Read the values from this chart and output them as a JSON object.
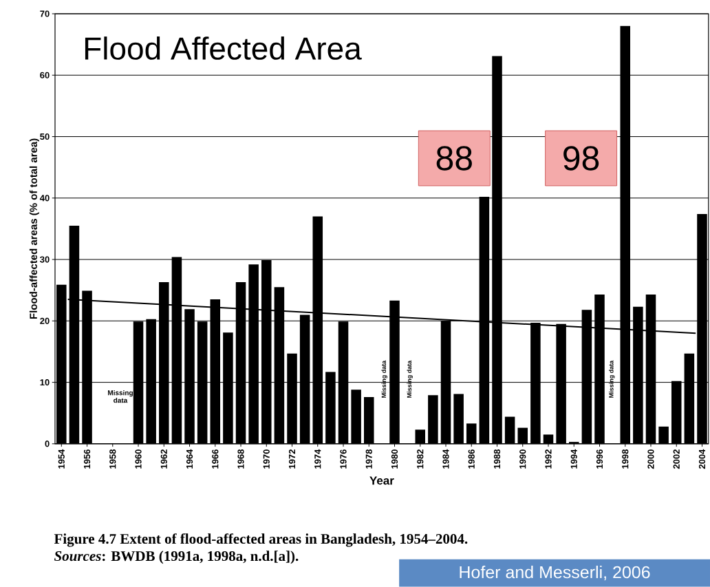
{
  "chart_data": {
    "type": "bar",
    "title": "Flood Affected Area",
    "xlabel": "Year",
    "ylabel": "Flood-affected areas (% of total area)",
    "x": [
      1954,
      1955,
      1956,
      1957,
      1958,
      1959,
      1960,
      1961,
      1962,
      1963,
      1964,
      1965,
      1966,
      1967,
      1968,
      1969,
      1970,
      1971,
      1972,
      1973,
      1974,
      1975,
      1976,
      1977,
      1978,
      1979,
      1980,
      1981,
      1982,
      1983,
      1984,
      1985,
      1986,
      1987,
      1988,
      1989,
      1990,
      1991,
      1992,
      1993,
      1994,
      1995,
      1996,
      1997,
      1998,
      1999,
      2000,
      2001,
      2002,
      2003,
      2004
    ],
    "series": [
      {
        "color": "#000000",
        "values": [
          25.9,
          35.5,
          24.9,
          null,
          null,
          null,
          19.9,
          20.3,
          26.3,
          30.4,
          21.9,
          19.9,
          23.5,
          18.1,
          26.3,
          29.2,
          29.9,
          25.5,
          14.7,
          21.0,
          37.0,
          11.7,
          19.9,
          8.8,
          7.6,
          null,
          23.3,
          null,
          2.3,
          7.9,
          20.0,
          8.1,
          3.3,
          40.2,
          63.1,
          4.4,
          2.6,
          19.7,
          1.5,
          19.5,
          0.3,
          21.8,
          24.3,
          null,
          68.0,
          22.3,
          24.3,
          2.8,
          10.2,
          14.7,
          37.4
        ]
      },
      {
        "type": "line",
        "color": "#000000",
        "x": [
          1954.5,
          2003.5
        ],
        "values": [
          23.5,
          18.0
        ]
      }
    ],
    "xlim": [
      1953.5,
      2004.5
    ],
    "xticks": [
      1954,
      1956,
      1958,
      1960,
      1962,
      1964,
      1966,
      1968,
      1970,
      1972,
      1974,
      1976,
      1978,
      1980,
      1982,
      1984,
      1986,
      1988,
      1990,
      1992,
      1994,
      1996,
      1998,
      2000,
      2002,
      2004
    ],
    "ylim": [
      0,
      70
    ],
    "yticks": [
      0,
      10,
      20,
      30,
      40,
      50,
      60,
      70
    ],
    "grid": "y",
    "annotations": [
      "Missing data",
      "Missing data",
      "Missing data",
      "Missing data",
      "88",
      "98",
      "Figure 4.7 Extent of flood-affected areas in Bangladesh, 1954–2004.",
      "*Sources*: BWDB (1991a, 1998a, n.d.[a]).",
      "Hofer and Messerli, 2006"
    ]
  }
}
